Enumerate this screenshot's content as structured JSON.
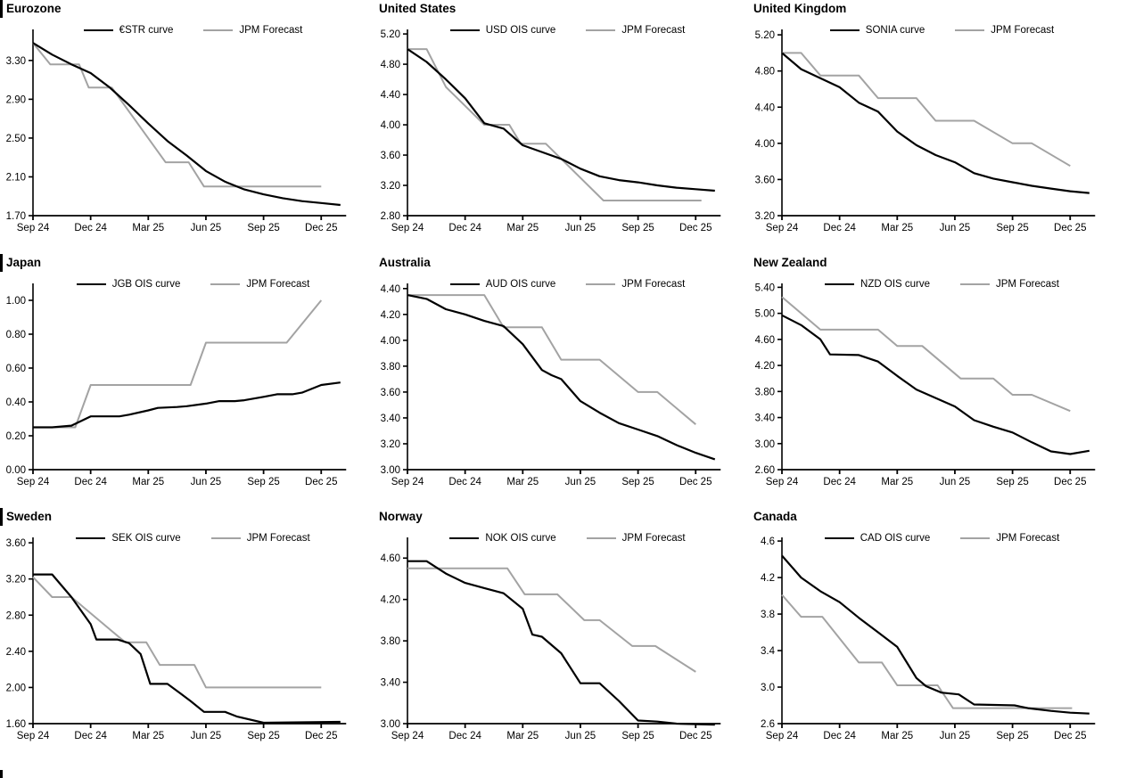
{
  "page": {
    "background": "#ffffff"
  },
  "colors": {
    "series1": "#000000",
    "series2": "#a3a3a3"
  },
  "x_axis": {
    "labels": [
      "Sep 24",
      "Dec 24",
      "Mar 25",
      "Jun 25",
      "Sep 25",
      "Dec 25"
    ],
    "tick_months": [
      0,
      3,
      6,
      9,
      12,
      15
    ],
    "axis_end_month": 16.3
  },
  "chart_data": [
    {
      "type": "line",
      "title": "Eurozone",
      "legend_position": "top-center",
      "y_min": 1.7,
      "y_axis_top": 3.62,
      "y_ticks": [
        1.7,
        2.1,
        2.5,
        2.9,
        3.3
      ],
      "y_tick_labels": [
        "1.70",
        "2.10",
        "2.50",
        "2.90",
        "3.30"
      ],
      "series": [
        {
          "name": "€STR curve",
          "color_key": "series1",
          "x": [
            0,
            1,
            2,
            3,
            4,
            5,
            6,
            7,
            8,
            9,
            10,
            11,
            12,
            13,
            14,
            15,
            16
          ],
          "values": [
            3.48,
            3.36,
            3.26,
            3.17,
            3.02,
            2.84,
            2.65,
            2.47,
            2.32,
            2.16,
            2.05,
            1.97,
            1.92,
            1.88,
            1.85,
            1.83,
            1.81
          ]
        },
        {
          "name": "JPM Forecast",
          "color_key": "series2",
          "x": [
            0,
            0.9,
            2.4,
            2.9,
            4.1,
            6.9,
            8.1,
            8.9,
            15
          ],
          "values": [
            3.48,
            3.26,
            3.26,
            3.02,
            3.02,
            2.25,
            2.25,
            2.0,
            2.0
          ]
        }
      ]
    },
    {
      "type": "line",
      "title": "United States",
      "legend_position": "top-center",
      "y_min": 2.8,
      "y_axis_top": 5.26,
      "y_ticks": [
        2.8,
        3.2,
        3.6,
        4.0,
        4.4,
        4.8,
        5.2
      ],
      "y_tick_labels": [
        "2.80",
        "3.20",
        "3.60",
        "4.00",
        "4.40",
        "4.80",
        "5.20"
      ],
      "series": [
        {
          "name": "USD OIS curve",
          "color_key": "series1",
          "x": [
            0,
            1,
            2,
            3,
            4,
            5,
            6,
            7,
            8,
            9,
            10,
            11,
            12,
            13,
            14,
            15,
            16
          ],
          "values": [
            5.0,
            4.83,
            4.6,
            4.35,
            4.02,
            3.95,
            3.73,
            3.64,
            3.55,
            3.42,
            3.32,
            3.27,
            3.24,
            3.2,
            3.17,
            3.15,
            3.13
          ]
        },
        {
          "name": "JPM Forecast",
          "color_key": "series2",
          "x": [
            0,
            1,
            2,
            4,
            5.3,
            5.9,
            7.2,
            10.2,
            15.3
          ],
          "values": [
            5.0,
            5.0,
            4.5,
            4.0,
            4.0,
            3.75,
            3.75,
            3.0,
            3.0
          ]
        }
      ]
    },
    {
      "type": "line",
      "title": "United Kingdom",
      "legend_position": "top-center",
      "y_min": 3.2,
      "y_axis_top": 5.26,
      "y_ticks": [
        3.2,
        3.6,
        4.0,
        4.4,
        4.8,
        5.2
      ],
      "y_tick_labels": [
        "3.20",
        "3.60",
        "4.00",
        "4.40",
        "4.80",
        "5.20"
      ],
      "series": [
        {
          "name": "SONIA curve",
          "color_key": "series1",
          "x": [
            0,
            1,
            2,
            3,
            4,
            5,
            6,
            7,
            8,
            9,
            10,
            11,
            12,
            13,
            14,
            15,
            16
          ],
          "values": [
            5.0,
            4.82,
            4.72,
            4.62,
            4.45,
            4.35,
            4.13,
            3.98,
            3.87,
            3.79,
            3.67,
            3.61,
            3.57,
            3.53,
            3.5,
            3.47,
            3.45
          ]
        },
        {
          "name": "JPM Forecast",
          "color_key": "series2",
          "x": [
            0,
            1,
            2,
            4,
            5,
            7,
            8,
            10,
            12,
            13,
            15
          ],
          "values": [
            5.0,
            5.0,
            4.75,
            4.75,
            4.5,
            4.5,
            4.25,
            4.25,
            4.0,
            4.0,
            3.75
          ]
        }
      ]
    },
    {
      "type": "line",
      "title": "Japan",
      "legend_position": "top-center",
      "y_min": 0.0,
      "y_axis_top": 1.1,
      "y_ticks": [
        0.0,
        0.2,
        0.4,
        0.6,
        0.8,
        1.0
      ],
      "y_tick_labels": [
        "0.00",
        "0.20",
        "0.40",
        "0.60",
        "0.80",
        "1.00"
      ],
      "series": [
        {
          "name": "JGB OIS curve",
          "color_key": "series1",
          "x": [
            0,
            1,
            2,
            3,
            4.5,
            5,
            6,
            6.5,
            7.5,
            8,
            9,
            9.7,
            10.5,
            11,
            12,
            12.7,
            13.5,
            14,
            15,
            16
          ],
          "values": [
            0.25,
            0.25,
            0.26,
            0.315,
            0.315,
            0.325,
            0.35,
            0.365,
            0.37,
            0.375,
            0.39,
            0.405,
            0.405,
            0.41,
            0.43,
            0.445,
            0.445,
            0.455,
            0.5,
            0.515
          ]
        },
        {
          "name": "JPM Forecast",
          "color_key": "series2",
          "x": [
            0,
            2.2,
            3,
            8.2,
            9,
            13.2,
            15
          ],
          "values": [
            0.25,
            0.25,
            0.5,
            0.5,
            0.75,
            0.75,
            1.0
          ]
        }
      ]
    },
    {
      "type": "line",
      "title": "Australia",
      "legend_position": "top-center",
      "y_min": 3.0,
      "y_axis_top": 4.44,
      "y_ticks": [
        3.0,
        3.2,
        3.4,
        3.6,
        3.8,
        4.0,
        4.2,
        4.4
      ],
      "y_tick_labels": [
        "3.00",
        "3.20",
        "3.40",
        "3.60",
        "3.80",
        "4.00",
        "4.20",
        "4.40"
      ],
      "series": [
        {
          "name": "AUD OIS curve",
          "color_key": "series1",
          "x": [
            0,
            1,
            2,
            3,
            4,
            5,
            6,
            7,
            7.5,
            8,
            9,
            10,
            11,
            12,
            13,
            14,
            15,
            16
          ],
          "values": [
            4.35,
            4.32,
            4.24,
            4.2,
            4.15,
            4.11,
            3.97,
            3.77,
            3.73,
            3.7,
            3.53,
            3.44,
            3.36,
            3.31,
            3.26,
            3.19,
            3.13,
            3.08
          ]
        },
        {
          "name": "JPM Forecast",
          "color_key": "series2",
          "x": [
            0,
            4,
            5,
            7,
            8,
            10,
            12,
            13,
            15
          ],
          "values": [
            4.35,
            4.35,
            4.1,
            4.1,
            3.85,
            3.85,
            3.6,
            3.6,
            3.35
          ]
        }
      ]
    },
    {
      "type": "line",
      "title": "New Zealand",
      "legend_position": "top-center",
      "y_min": 2.6,
      "y_axis_top": 5.46,
      "y_ticks": [
        2.6,
        3.0,
        3.4,
        3.8,
        4.2,
        4.6,
        5.0,
        5.4
      ],
      "y_tick_labels": [
        "2.60",
        "3.00",
        "3.40",
        "3.80",
        "4.20",
        "4.60",
        "5.00",
        "5.40"
      ],
      "series": [
        {
          "name": "NZD OIS curve",
          "color_key": "series1",
          "x": [
            0,
            1,
            2,
            2.5,
            4,
            5,
            6,
            7,
            8,
            9,
            10,
            11,
            12,
            13,
            14,
            15,
            16
          ],
          "values": [
            4.97,
            4.82,
            4.6,
            4.37,
            4.36,
            4.26,
            4.04,
            3.83,
            3.7,
            3.57,
            3.36,
            3.26,
            3.17,
            3.02,
            2.88,
            2.84,
            2.89
          ]
        },
        {
          "name": "JPM Forecast",
          "color_key": "series2",
          "x": [
            0,
            2,
            5,
            6,
            7.3,
            9.3,
            11,
            12,
            13,
            15
          ],
          "values": [
            5.25,
            4.75,
            4.75,
            4.5,
            4.5,
            4.0,
            4.0,
            3.75,
            3.75,
            3.5
          ]
        }
      ]
    },
    {
      "type": "line",
      "title": "Sweden",
      "legend_position": "top-center",
      "y_min": 1.6,
      "y_axis_top": 3.66,
      "y_ticks": [
        1.6,
        2.0,
        2.4,
        2.8,
        3.2,
        3.6
      ],
      "y_tick_labels": [
        "1.60",
        "2.00",
        "2.40",
        "2.80",
        "3.20",
        "3.60"
      ],
      "series": [
        {
          "name": "SEK OIS curve",
          "color_key": "series1",
          "x": [
            0,
            1,
            2,
            3,
            3.3,
            4.4,
            5,
            5.6,
            6.1,
            7,
            7.7,
            8.2,
            8.9,
            10,
            10.6,
            12,
            16
          ],
          "values": [
            3.25,
            3.25,
            3.0,
            2.7,
            2.53,
            2.53,
            2.49,
            2.37,
            2.04,
            2.04,
            1.93,
            1.85,
            1.73,
            1.73,
            1.68,
            1.61,
            1.62
          ]
        },
        {
          "name": "JPM Forecast",
          "color_key": "series2",
          "x": [
            0,
            1,
            2,
            4.8,
            5.9,
            6.6,
            8.4,
            9,
            15
          ],
          "values": [
            3.22,
            3.0,
            3.0,
            2.5,
            2.5,
            2.25,
            2.25,
            2.0,
            2.0
          ]
        }
      ]
    },
    {
      "type": "line",
      "title": "Norway",
      "legend_position": "top-center",
      "y_min": 3.0,
      "y_axis_top": 4.8,
      "y_ticks": [
        3.0,
        3.4,
        3.8,
        4.2,
        4.6
      ],
      "y_tick_labels": [
        "3.00",
        "3.40",
        "3.80",
        "4.20",
        "4.60"
      ],
      "series": [
        {
          "name": "NOK OIS curve",
          "color_key": "series1",
          "x": [
            0,
            1,
            2,
            3,
            4,
            5,
            6,
            6.5,
            7,
            8,
            9,
            10,
            11,
            12,
            13,
            14,
            16
          ],
          "values": [
            4.57,
            4.57,
            4.45,
            4.36,
            4.31,
            4.26,
            4.11,
            3.86,
            3.84,
            3.68,
            3.39,
            3.39,
            3.22,
            3.03,
            3.02,
            3.0,
            2.99
          ]
        },
        {
          "name": "JPM Forecast",
          "color_key": "series2",
          "x": [
            0,
            5.2,
            6.1,
            7.8,
            9.2,
            10,
            11.7,
            12.9,
            15
          ],
          "values": [
            4.5,
            4.5,
            4.25,
            4.25,
            4.0,
            4.0,
            3.75,
            3.75,
            3.5
          ]
        }
      ]
    },
    {
      "type": "line",
      "title": "Canada",
      "legend_position": "top-center",
      "y_min": 2.6,
      "y_axis_top": 4.64,
      "y_ticks": [
        2.6,
        3.0,
        3.4,
        3.8,
        4.2,
        4.6
      ],
      "y_tick_labels": [
        "2.6",
        "3.0",
        "3.4",
        "3.8",
        "4.2",
        "4.6"
      ],
      "series": [
        {
          "name": "CAD OIS curve",
          "color_key": "series1",
          "x": [
            0,
            1,
            2,
            3,
            4,
            5,
            6,
            7,
            7.5,
            8.3,
            9.2,
            10,
            12.1,
            12.8,
            14,
            15,
            16
          ],
          "values": [
            4.44,
            4.2,
            4.05,
            3.93,
            3.76,
            3.6,
            3.44,
            3.1,
            3.01,
            2.94,
            2.92,
            2.81,
            2.8,
            2.77,
            2.74,
            2.72,
            2.71
          ]
        },
        {
          "name": "JPM Forecast",
          "color_key": "series2",
          "x": [
            0,
            1,
            2.1,
            4,
            5.2,
            6,
            8.1,
            8.9,
            15.1
          ],
          "values": [
            4.01,
            3.77,
            3.77,
            3.27,
            3.27,
            3.02,
            3.02,
            2.77,
            2.77
          ]
        }
      ]
    }
  ]
}
